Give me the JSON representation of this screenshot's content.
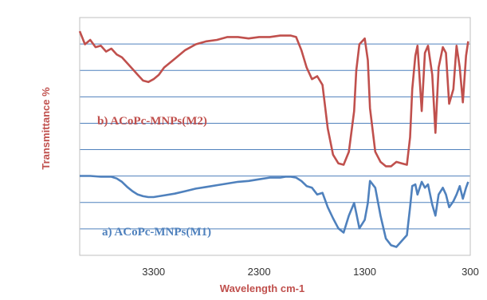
{
  "chart_data": {
    "type": "line",
    "xlabel": "Wavelength cm-1",
    "ylabel": "Transmittance %",
    "xlim": [
      4000,
      300
    ],
    "x_reversed": true,
    "ticks": [
      {
        "value": 3300,
        "label": "3300"
      },
      {
        "value": 2300,
        "label": "2300"
      },
      {
        "value": 1300,
        "label": "1300"
      },
      {
        "value": 300,
        "label": "300"
      }
    ],
    "ylim": [
      0,
      100
    ],
    "y_ticks_shown": false,
    "grid": "horizontal",
    "legend": "inline labels",
    "series": [
      {
        "name": "b) ACoPc-MNPs(M2)",
        "color": "#c0504d",
        "x": [
          4000,
          3950,
          3900,
          3850,
          3800,
          3750,
          3700,
          3650,
          3600,
          3550,
          3500,
          3450,
          3400,
          3350,
          3300,
          3250,
          3200,
          3100,
          3000,
          2900,
          2800,
          2700,
          2600,
          2500,
          2400,
          2300,
          2200,
          2100,
          2050,
          2000,
          1950,
          1900,
          1850,
          1800,
          1750,
          1700,
          1650,
          1600,
          1550,
          1500,
          1450,
          1400,
          1380,
          1350,
          1300,
          1270,
          1250,
          1200,
          1150,
          1100,
          1050,
          1000,
          950,
          900,
          870,
          850,
          820,
          800,
          760,
          730,
          700,
          660,
          630,
          600,
          560,
          530,
          500,
          460,
          430,
          400,
          370,
          340,
          320
        ],
        "y": [
          95,
          86,
          89,
          84,
          85,
          81,
          83,
          79,
          77,
          73,
          69,
          65,
          61,
          60,
          62,
          65,
          70,
          76,
          82,
          86,
          88,
          89,
          91,
          91,
          90,
          91,
          91,
          92,
          92,
          92,
          91,
          82,
          70,
          62,
          64,
          58,
          28,
          10,
          4,
          3,
          12,
          40,
          68,
          86,
          90,
          75,
          42,
          12,
          5,
          2,
          2,
          5,
          4,
          3,
          22,
          55,
          78,
          85,
          40,
          80,
          85,
          65,
          25,
          70,
          84,
          80,
          45,
          55,
          85,
          70,
          46,
          78,
          88
        ],
        "label_position": [
          4000,
          56
        ]
      },
      {
        "name": "a) ACoPc-MNPs(M1)",
        "color": "#4f81bd",
        "x": [
          4000,
          3900,
          3800,
          3700,
          3650,
          3600,
          3550,
          3500,
          3450,
          3400,
          3350,
          3300,
          3200,
          3100,
          3000,
          2900,
          2800,
          2700,
          2600,
          2500,
          2400,
          2300,
          2200,
          2100,
          2050,
          2000,
          1950,
          1900,
          1850,
          1800,
          1750,
          1700,
          1650,
          1600,
          1550,
          1500,
          1450,
          1400,
          1380,
          1350,
          1300,
          1270,
          1250,
          1200,
          1150,
          1100,
          1050,
          1000,
          950,
          900,
          870,
          850,
          820,
          800,
          760,
          730,
          700,
          660,
          630,
          600,
          560,
          530,
          500,
          460,
          430,
          400,
          370,
          340,
          320
        ],
        "y": [
          92,
          92,
          91,
          91,
          89,
          85,
          79,
          74,
          70,
          68,
          67,
          67,
          69,
          71,
          74,
          77,
          79,
          81,
          83,
          85,
          86,
          88,
          90,
          90,
          91,
          91,
          90,
          86,
          80,
          78,
          70,
          72,
          55,
          42,
          30,
          25,
          45,
          60,
          48,
          30,
          40,
          60,
          86,
          78,
          45,
          18,
          10,
          8,
          15,
          22,
          55,
          80,
          82,
          70,
          85,
          78,
          82,
          58,
          45,
          70,
          78,
          70,
          55,
          62,
          70,
          80,
          65,
          78,
          85
        ],
        "label_position": [
          3500,
          20
        ]
      }
    ]
  }
}
